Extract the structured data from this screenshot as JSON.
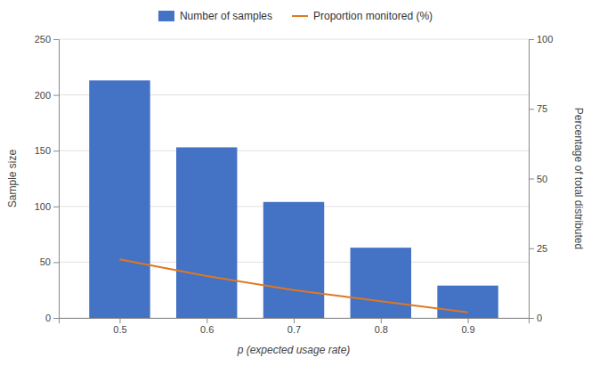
{
  "chart_data": {
    "type": "bar",
    "x": [
      0.5,
      0.6,
      0.7,
      0.8,
      0.9
    ],
    "xlim": [
      0.43,
      0.97
    ],
    "xticks": [
      0.5,
      0.6,
      0.7,
      0.8,
      0.9
    ],
    "ylim": [
      0,
      250
    ],
    "yticks": [
      0,
      50,
      100,
      150,
      200,
      250
    ],
    "y2lim": [
      0,
      100
    ],
    "y2ticks": [
      0,
      25,
      50,
      75,
      100
    ],
    "xlabel": "p (expected usage rate)",
    "ylabel": "Sample size",
    "y2label": "Percentage of total distributed",
    "grid": true,
    "legend": "top",
    "series": [
      {
        "name": "Number of samples",
        "type": "bar",
        "color": "#4472C4",
        "values": [
          213,
          153,
          104,
          63,
          29
        ]
      },
      {
        "name": "Proportion monitored (%)",
        "type": "line",
        "axis": "y2",
        "color": "#E07820",
        "values": [
          21,
          15,
          10,
          6,
          2
        ]
      }
    ]
  }
}
